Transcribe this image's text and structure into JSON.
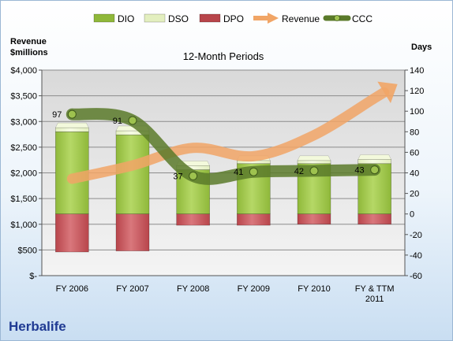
{
  "chart_data": {
    "type": "bar",
    "title": "12-Month Periods",
    "company": "Herbalife",
    "left_axis_title": [
      "Revenue",
      "$millions"
    ],
    "right_axis_title": "Days",
    "left_axis": {
      "min": 0,
      "max": 4000,
      "step": 500,
      "tick_labels": [
        "$-",
        "$500",
        "$1,000",
        "$1,500",
        "$2,000",
        "$2,500",
        "$3,000",
        "$3,500",
        "$4,000"
      ]
    },
    "right_axis": {
      "min": -60,
      "max": 140,
      "step": 20
    },
    "categories": [
      [
        "FY 2006"
      ],
      [
        "FY 2007"
      ],
      [
        "FY 2008"
      ],
      [
        "FY 2009"
      ],
      [
        "FY 2010"
      ],
      [
        "FY & TTM",
        "2011"
      ]
    ],
    "series": [
      {
        "name": "DIO",
        "kind": "stacked-bar",
        "axis": "days",
        "values": [
          80,
          77,
          43,
          49,
          49,
          49
        ]
      },
      {
        "name": "DSO",
        "kind": "stacked-bar",
        "axis": "days",
        "values": [
          4,
          4,
          4,
          3,
          3,
          4
        ]
      },
      {
        "name": "DPO",
        "kind": "negative-bar",
        "axis": "days",
        "values": [
          -37,
          -36,
          -11,
          -11,
          -10,
          -10
        ]
      },
      {
        "name": "Revenue",
        "kind": "trend-arrow",
        "axis": "revenue",
        "values": [
          1885,
          2145,
          2486,
          2324,
          2734,
          3454
        ]
      },
      {
        "name": "CCC",
        "kind": "smooth-line",
        "axis": "days",
        "values": [
          97,
          91,
          37,
          41,
          42,
          43
        ]
      }
    ],
    "ccc_labels": [
      "97",
      "91",
      "37",
      "41",
      "42",
      "43"
    ],
    "legend_position": "top",
    "colors": {
      "DIO": "#8fb83a",
      "DSO": "#e3efbf",
      "DPO": "#b8454b",
      "Revenue": "#f1a566",
      "CCC": "#5a7a2a"
    },
    "grid": true
  }
}
